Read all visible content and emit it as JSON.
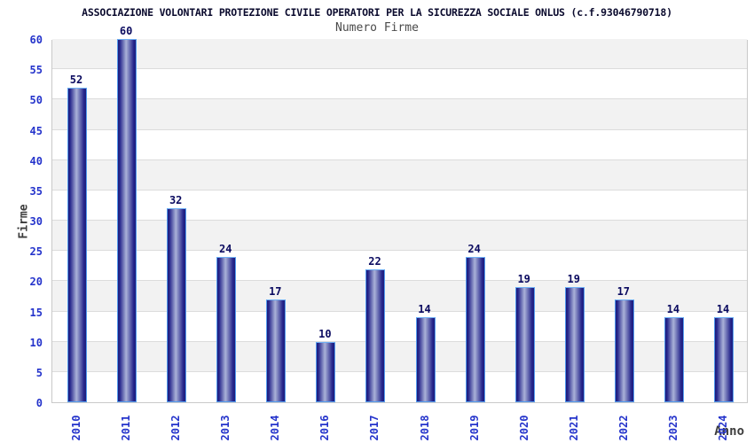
{
  "chart_data": {
    "type": "bar",
    "title": "ASSOCIAZIONE VOLONTARI PROTEZIONE CIVILE OPERATORI PER LA SICUREZZA SOCIALE ONLUS (c.f.93046790718)",
    "subtitle": "Numero Firme",
    "xlabel": "Anno",
    "ylabel": "Firme",
    "categories": [
      "2010",
      "2011",
      "2012",
      "2013",
      "2014",
      "2016",
      "2017",
      "2018",
      "2019",
      "2020",
      "2021",
      "2022",
      "2023",
      "2024"
    ],
    "values": [
      52,
      60,
      32,
      24,
      17,
      10,
      22,
      14,
      24,
      19,
      19,
      17,
      14,
      14
    ],
    "ylim": [
      0,
      60
    ],
    "ytick_step": 5,
    "yticks": [
      0,
      5,
      10,
      15,
      20,
      25,
      30,
      35,
      40,
      45,
      50,
      55,
      60
    ],
    "grid": true,
    "legend": "none",
    "colors": {
      "bar_dark": "#1d1d7c",
      "bar_mid": "#26268c",
      "bar_light": "#aab2d8",
      "bar_border": "#539bee",
      "tick_blue": "#2433cb",
      "value_navy": "#0b0b60",
      "title_navy": "#0b0b2e",
      "axis_text_gray": "#3d3d3d",
      "band_gray": "#f2f2f2",
      "gridline": "#dcdcdc",
      "plot_border": "#c9c9c9",
      "background": "#ffffff"
    }
  }
}
